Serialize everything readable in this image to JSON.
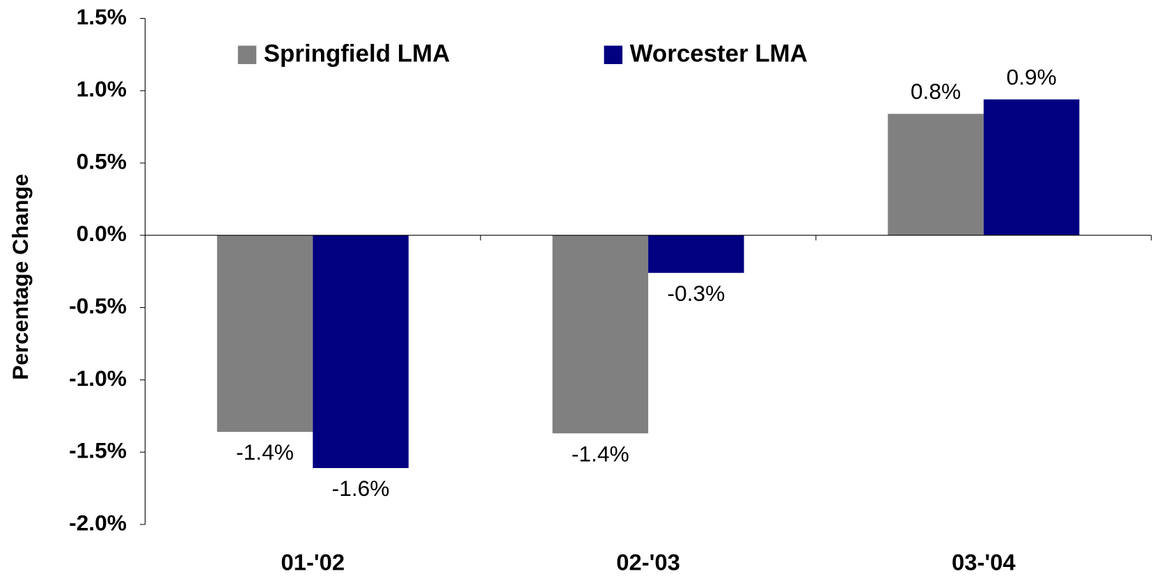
{
  "chart_data": {
    "type": "bar",
    "y_label": "Percentage Change",
    "categories": [
      "01-'02",
      "02-'03",
      "03-'04"
    ],
    "series": [
      {
        "name": "Springfield LMA",
        "color": "#808080",
        "values": [
          -1.36,
          -1.37,
          0.84
        ],
        "value_labels": [
          "-1.4%",
          "-1.4%",
          "0.8%"
        ]
      },
      {
        "name": "Worcester LMA",
        "color": "#000080",
        "values": [
          -1.61,
          -0.26,
          0.94
        ],
        "value_labels": [
          "-1.6%",
          "-0.3%",
          "0.9%"
        ]
      }
    ],
    "ylim": [
      -2.0,
      1.5
    ],
    "yticks": [
      {
        "value": -2.0,
        "label": "-2.0%"
      },
      {
        "value": -1.5,
        "label": "-1.5%"
      },
      {
        "value": -1.0,
        "label": "-1.0%"
      },
      {
        "value": -0.5,
        "label": "-0.5%"
      },
      {
        "value": 0,
        "label": "0.0%"
      },
      {
        "value": 0.5,
        "label": "0.5%"
      },
      {
        "value": 1.0,
        "label": "1.0%"
      },
      {
        "value": 1.5,
        "label": "1.5%"
      }
    ],
    "grid": false
  }
}
